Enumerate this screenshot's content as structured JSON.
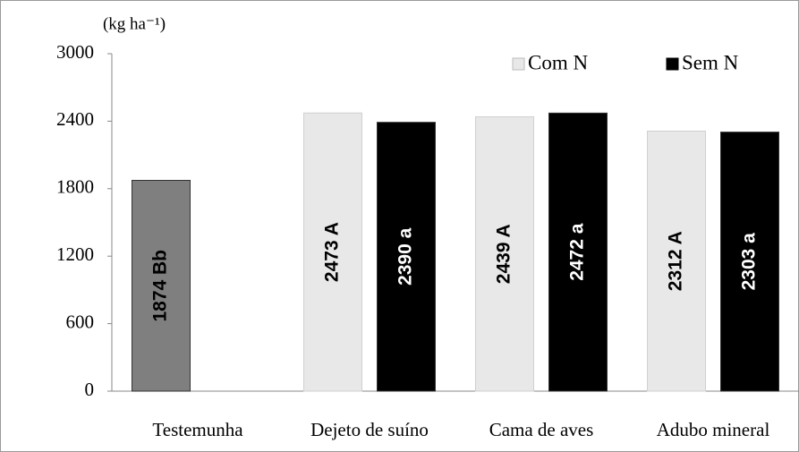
{
  "chart_data": {
    "type": "bar",
    "y_label": "(kg ha⁻¹)",
    "categories": [
      "Testemunha",
      "Dejeto de suíno",
      "Cama de aves",
      "Adubo mineral"
    ],
    "series": [
      {
        "color": "#7f7f7f",
        "values": [
          1874,
          null,
          null,
          null
        ],
        "value_labels": [
          "1874 Bb",
          null,
          null,
          null
        ]
      },
      {
        "name": "Com N",
        "color": "#e8e8e8",
        "values": [
          null,
          2473,
          2439,
          2312
        ],
        "value_labels": [
          null,
          "2473 A",
          "2439 A",
          "2312 A"
        ]
      },
      {
        "name": "Sem N",
        "color": "#000000",
        "values": [
          null,
          2390,
          2472,
          2303
        ],
        "value_labels": [
          null,
          "2390 a",
          "2472 a",
          "2303 a"
        ]
      }
    ],
    "ylim": [
      0,
      3000
    ],
    "yticks": [
      0,
      600,
      1200,
      1800,
      2400,
      3000
    ],
    "legend": "top-right",
    "grid": false
  }
}
